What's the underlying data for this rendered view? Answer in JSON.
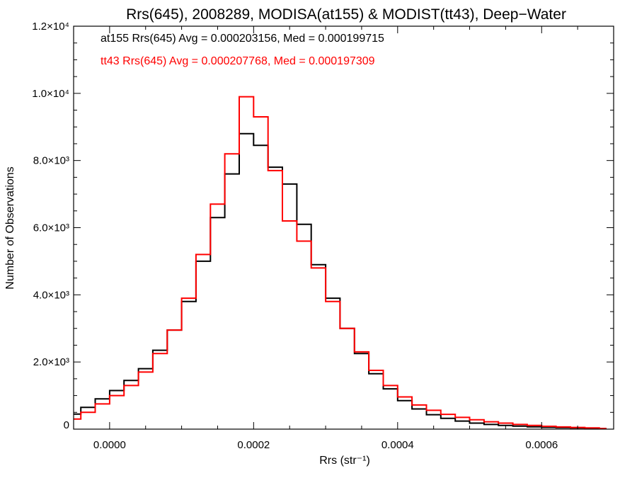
{
  "chart_data": {
    "type": "line",
    "title": "Rrs(645), 2008289, MODISA(at155) & MODIST(tt43), Deep−Water",
    "xlabel": "Rrs (str⁻¹)",
    "ylabel": "Number of Observations",
    "xlim": [
      -5e-05,
      0.0007
    ],
    "ylim": [
      0,
      12000
    ],
    "x_ticks": [
      {
        "value": 0.0,
        "label": "0.0000"
      },
      {
        "value": 0.0002,
        "label": "0.0002"
      },
      {
        "value": 0.0004,
        "label": "0.0004"
      },
      {
        "value": 0.0006,
        "label": "0.0006"
      }
    ],
    "y_ticks": [
      {
        "value": 0,
        "label": "0"
      },
      {
        "value": 2000,
        "label": "2.0×10³"
      },
      {
        "value": 4000,
        "label": "4.0×10³"
      },
      {
        "value": 6000,
        "label": "6.0×10³"
      },
      {
        "value": 8000,
        "label": "8.0×10³"
      },
      {
        "value": 10000,
        "label": "1.0×10⁴"
      },
      {
        "value": 12000,
        "label": "1.2×10⁴"
      }
    ],
    "annotations": [
      {
        "text": "at155 Rrs(645) Avg = 0.000203156, Med = 0.000199715",
        "color": "#000000"
      },
      {
        "text": "tt43 Rrs(645) Avg = 0.000207768, Med = 0.000197309",
        "color": "#ff0000"
      }
    ],
    "series": [
      {
        "color": "#000000",
        "x": [
          -5e-05,
          -3e-05,
          -1e-05,
          1e-05,
          3e-05,
          5e-05,
          7e-05,
          9e-05,
          0.00011,
          0.00013,
          0.00015,
          0.00017,
          0.00019,
          0.00021,
          0.00023,
          0.00025,
          0.00027,
          0.00029,
          0.00031,
          0.00033,
          0.00035,
          0.00037,
          0.00039,
          0.00041,
          0.00043,
          0.00045,
          0.00047,
          0.00049,
          0.00051,
          0.00053,
          0.00055,
          0.00057,
          0.00059,
          0.00061,
          0.00063,
          0.00065,
          0.00067,
          0.00069
        ],
        "y": [
          450,
          650,
          900,
          1150,
          1450,
          1800,
          2350,
          2950,
          3800,
          5000,
          6300,
          7600,
          8800,
          8450,
          7800,
          7300,
          6100,
          4900,
          3900,
          3000,
          2250,
          1650,
          1200,
          850,
          600,
          430,
          320,
          240,
          180,
          140,
          110,
          90,
          70,
          55,
          45,
          35,
          25,
          15
        ]
      },
      {
        "color": "#ff0000",
        "x": [
          -5e-05,
          -3e-05,
          -1e-05,
          1e-05,
          3e-05,
          5e-05,
          7e-05,
          9e-05,
          0.00011,
          0.00013,
          0.00015,
          0.00017,
          0.00019,
          0.00021,
          0.00023,
          0.00025,
          0.00027,
          0.00029,
          0.00031,
          0.00033,
          0.00035,
          0.00037,
          0.00039,
          0.00041,
          0.00043,
          0.00045,
          0.00047,
          0.00049,
          0.00051,
          0.00053,
          0.00055,
          0.00057,
          0.00059,
          0.00061,
          0.00063,
          0.00065,
          0.00067,
          0.00069
        ],
        "y": [
          300,
          500,
          750,
          1000,
          1300,
          1700,
          2250,
          2950,
          3900,
          5200,
          6700,
          8200,
          9900,
          9300,
          7700,
          6200,
          5600,
          4800,
          3800,
          3000,
          2300,
          1750,
          1300,
          960,
          720,
          560,
          440,
          350,
          280,
          220,
          180,
          140,
          110,
          85,
          65,
          50,
          35,
          20
        ]
      }
    ]
  }
}
